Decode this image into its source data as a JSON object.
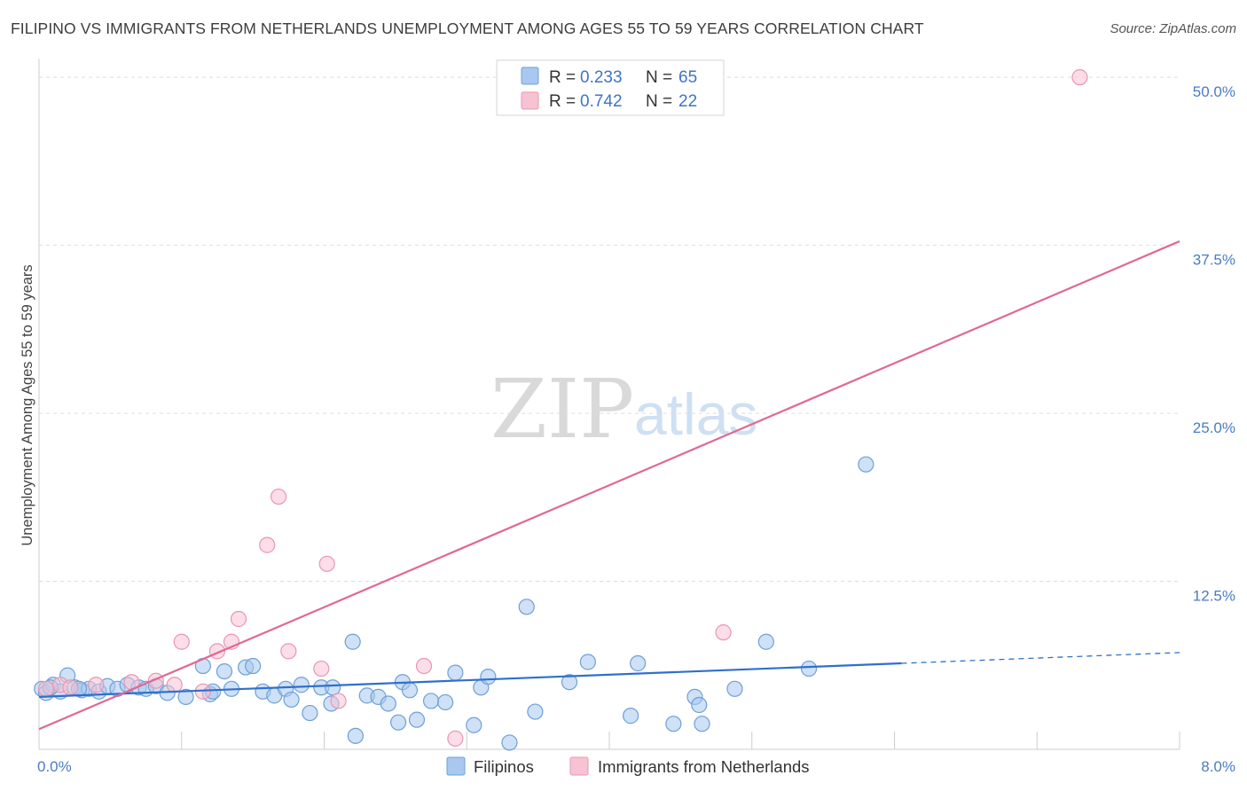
{
  "title": "FILIPINO VS IMMIGRANTS FROM NETHERLANDS UNEMPLOYMENT AMONG AGES 55 TO 59 YEARS CORRELATION CHART",
  "source": "Source: ZipAtlas.com",
  "watermark": {
    "zip": "ZIP",
    "atlas": "atlas"
  },
  "colors": {
    "filipinos_fill": "#a8c8ef",
    "filipinos_stroke": "#6e9fd8",
    "filipinos_line": "#2f6fce",
    "netherlands_fill": "#f7c3d3",
    "netherlands_stroke": "#e896b2",
    "netherlands_line": "#e06896",
    "tick_text": "#4a7cc4",
    "grid": "#dddddd"
  },
  "legend": {
    "r_label": "R =",
    "n_label": "N =",
    "rows": [
      {
        "series": "Filipinos",
        "r": "0.233",
        "n": "65"
      },
      {
        "series": "Immigrants from Netherlands",
        "r": "0.742",
        "n": "22"
      }
    ]
  },
  "chart_data": {
    "type": "scatter",
    "title": "FILIPINO VS IMMIGRANTS FROM NETHERLANDS UNEMPLOYMENT AMONG AGES 55 TO 59 YEARS CORRELATION CHART",
    "xlabel": "",
    "ylabel": "Unemployment Among Ages 55 to 59 years",
    "xlim": [
      0,
      8
    ],
    "ylim": [
      0,
      51
    ],
    "x_tick_labels": [
      {
        "value": 0,
        "label": "0.0%"
      },
      {
        "value": 8,
        "label": "8.0%"
      }
    ],
    "y_tick_labels": [
      {
        "value": 12.5,
        "label": "12.5%"
      },
      {
        "value": 25,
        "label": "25.0%"
      },
      {
        "value": 37.5,
        "label": "37.5%"
      },
      {
        "value": 50,
        "label": "50.0%"
      }
    ],
    "series": [
      {
        "name": "Filipinos",
        "points": [
          [
            0.02,
            4.5
          ],
          [
            0.05,
            4.2
          ],
          [
            0.1,
            4.8
          ],
          [
            0.15,
            4.3
          ],
          [
            0.2,
            5.5
          ],
          [
            0.25,
            4.6
          ],
          [
            0.3,
            4.4
          ],
          [
            0.35,
            4.5
          ],
          [
            0.42,
            4.3
          ],
          [
            0.48,
            4.7
          ],
          [
            0.55,
            4.5
          ],
          [
            0.62,
            4.8
          ],
          [
            0.7,
            4.6
          ],
          [
            0.75,
            4.5
          ],
          [
            0.82,
            4.7
          ],
          [
            0.9,
            4.2
          ],
          [
            1.03,
            3.9
          ],
          [
            1.15,
            6.2
          ],
          [
            1.2,
            4.1
          ],
          [
            1.3,
            5.8
          ],
          [
            1.35,
            4.5
          ],
          [
            1.45,
            6.1
          ],
          [
            1.5,
            6.2
          ],
          [
            1.57,
            4.3
          ],
          [
            1.65,
            4.0
          ],
          [
            1.73,
            4.5
          ],
          [
            1.77,
            3.7
          ],
          [
            1.84,
            4.8
          ],
          [
            1.9,
            2.7
          ],
          [
            1.98,
            4.6
          ],
          [
            2.05,
            3.4
          ],
          [
            2.06,
            4.6
          ],
          [
            2.2,
            8.0
          ],
          [
            2.22,
            1.0
          ],
          [
            2.3,
            4.0
          ],
          [
            2.38,
            3.9
          ],
          [
            2.45,
            3.4
          ],
          [
            2.52,
            2.0
          ],
          [
            2.55,
            5.0
          ],
          [
            2.6,
            4.4
          ],
          [
            2.65,
            2.2
          ],
          [
            2.75,
            3.6
          ],
          [
            2.85,
            3.5
          ],
          [
            2.92,
            5.7
          ],
          [
            3.05,
            1.8
          ],
          [
            3.1,
            4.6
          ],
          [
            3.15,
            5.4
          ],
          [
            3.3,
            0.5
          ],
          [
            3.42,
            10.6
          ],
          [
            3.48,
            2.8
          ],
          [
            3.72,
            5.0
          ],
          [
            3.85,
            6.5
          ],
          [
            4.15,
            2.5
          ],
          [
            4.2,
            6.4
          ],
          [
            4.45,
            1.9
          ],
          [
            4.6,
            3.9
          ],
          [
            4.63,
            3.3
          ],
          [
            4.65,
            1.9
          ],
          [
            4.88,
            4.5
          ],
          [
            5.1,
            8.0
          ],
          [
            5.4,
            6.0
          ],
          [
            5.8,
            21.2
          ],
          [
            0.08,
            4.6
          ],
          [
            0.28,
            4.5
          ],
          [
            1.22,
            4.3
          ]
        ]
      },
      {
        "name": "Immigrants from Netherlands",
        "points": [
          [
            0.05,
            4.5
          ],
          [
            0.15,
            4.8
          ],
          [
            0.4,
            4.8
          ],
          [
            0.65,
            5.0
          ],
          [
            0.82,
            5.1
          ],
          [
            0.95,
            4.8
          ],
          [
            1.0,
            8.0
          ],
          [
            1.15,
            4.3
          ],
          [
            1.25,
            7.3
          ],
          [
            1.35,
            8.0
          ],
          [
            1.4,
            9.7
          ],
          [
            1.6,
            15.2
          ],
          [
            1.68,
            18.8
          ],
          [
            1.75,
            7.3
          ],
          [
            1.98,
            6.0
          ],
          [
            2.02,
            13.8
          ],
          [
            2.1,
            3.6
          ],
          [
            2.7,
            6.2
          ],
          [
            2.92,
            0.8
          ],
          [
            4.8,
            8.7
          ],
          [
            7.3,
            50.0
          ],
          [
            0.22,
            4.6
          ]
        ]
      }
    ],
    "trendlines": [
      {
        "series": "Filipinos",
        "x": [
          0,
          6.05
        ],
        "y": [
          3.9,
          6.4
        ],
        "dashed_extension_x": [
          6.05,
          8
        ],
        "dashed_extension_y": [
          6.4,
          7.2
        ]
      },
      {
        "series": "Immigrants from Netherlands",
        "x": [
          0,
          8
        ],
        "y": [
          1.5,
          37.8
        ]
      }
    ]
  }
}
